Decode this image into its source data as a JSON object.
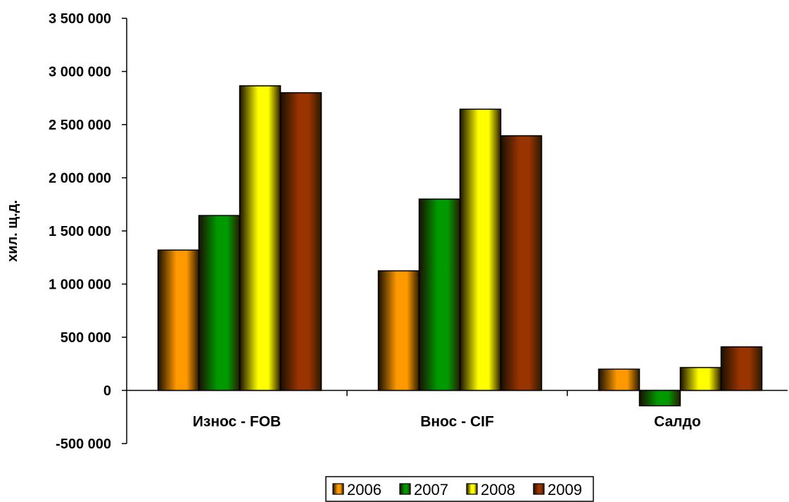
{
  "chart_data": {
    "type": "bar",
    "title": "",
    "xlabel": "",
    "ylabel": "хил. щ.д.",
    "categories": [
      "Износ - FOB",
      "Внос - CIF",
      "Салдо"
    ],
    "series": [
      {
        "name": "2006",
        "values": [
          1320000,
          1125000,
          200000
        ],
        "color": "#ff9900"
      },
      {
        "name": "2007",
        "values": [
          1645000,
          1800000,
          -145000
        ],
        "color": "#009900"
      },
      {
        "name": "2008",
        "values": [
          2865000,
          2645000,
          215000
        ],
        "color": "#ffff00"
      },
      {
        "name": "2009",
        "values": [
          2800000,
          2395000,
          410000
        ],
        "color": "#993300"
      }
    ],
    "ylim": [
      -500000,
      3500000
    ],
    "yticks": [
      -500000,
      0,
      500000,
      1000000,
      1500000,
      2000000,
      2500000,
      3000000,
      3500000
    ],
    "ytick_labels": [
      "-500 000",
      "0",
      "500 000",
      "1 000 000",
      "1 500 000",
      "2 000 000",
      "2 500 000",
      "3 000 000",
      "3 500 000"
    ],
    "grid": false,
    "legend_position": "bottom"
  }
}
